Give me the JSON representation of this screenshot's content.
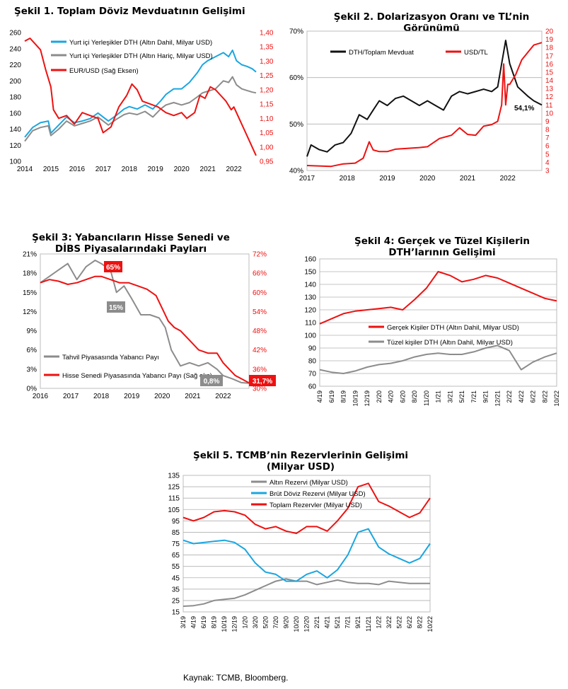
{
  "source_note": "Kaynak: TCMB, Bloomberg.",
  "colors": {
    "red": "#ee1111",
    "blue": "#1aa6e0",
    "gray": "#8c8c8c",
    "black": "#111111"
  },
  "chart_data": [
    {
      "type": "line",
      "title": "Şekil 1. Toplam Döviz Mevduatının Gelişimi",
      "x_ticks": [
        "2014",
        "2015",
        "2016",
        "2017",
        "2018",
        "2019",
        "2020",
        "2021",
        "2022"
      ],
      "x_range": [
        2014,
        2022.85
      ],
      "y_left": {
        "ticks": [
          "100",
          "120",
          "140",
          "160",
          "180",
          "200",
          "220",
          "240",
          "260"
        ],
        "range": [
          100,
          260
        ]
      },
      "y_right": {
        "ticks": [
          "0,95",
          "1,00",
          "1,05",
          "1,10",
          "1,15",
          "1,20",
          "1,25",
          "1,30",
          "1,35",
          "1,40"
        ],
        "range": [
          0.95,
          1.4
        ],
        "color": "#ee1111"
      },
      "legend_position": "top-right",
      "series": [
        {
          "name": "Yurt içi Yerleşikler DTH (Altın Dahil, Milyar USD)",
          "axis": "left",
          "color": "#1aa6e0",
          "x": [
            2014,
            2014.3,
            2014.6,
            2014.9,
            2015.0,
            2015.3,
            2015.6,
            2015.9,
            2016.2,
            2016.5,
            2016.8,
            2017.0,
            2017.2,
            2017.5,
            2017.8,
            2018.0,
            2018.3,
            2018.6,
            2018.9,
            2019.2,
            2019.4,
            2019.7,
            2020.0,
            2020.3,
            2020.6,
            2020.8,
            2021.0,
            2021.3,
            2021.6,
            2021.8,
            2021.95,
            2022.1,
            2022.3,
            2022.5,
            2022.7,
            2022.85
          ],
          "y": [
            130,
            142,
            148,
            150,
            135,
            145,
            155,
            148,
            150,
            153,
            160,
            155,
            150,
            157,
            165,
            168,
            165,
            170,
            165,
            175,
            183,
            190,
            190,
            198,
            210,
            220,
            225,
            230,
            235,
            230,
            238,
            225,
            220,
            218,
            215,
            211
          ]
        },
        {
          "name": "Yurt içi Yerleşikler DTH (Altın Hariç, Milyar USD)",
          "axis": "left",
          "color": "#8c8c8c",
          "x": [
            2014,
            2014.3,
            2014.6,
            2014.9,
            2015.0,
            2015.3,
            2015.6,
            2015.9,
            2016.2,
            2016.5,
            2016.8,
            2017.0,
            2017.2,
            2017.5,
            2017.8,
            2018.0,
            2018.3,
            2018.6,
            2018.9,
            2019.2,
            2019.4,
            2019.7,
            2020.0,
            2020.3,
            2020.6,
            2020.8,
            2021.0,
            2021.3,
            2021.6,
            2021.8,
            2021.95,
            2022.1,
            2022.3,
            2022.5,
            2022.7,
            2022.85
          ],
          "y": [
            125,
            138,
            142,
            144,
            132,
            140,
            150,
            144,
            147,
            150,
            155,
            150,
            145,
            152,
            158,
            160,
            158,
            162,
            155,
            165,
            170,
            173,
            170,
            173,
            180,
            185,
            187,
            190,
            200,
            198,
            205,
            195,
            190,
            188,
            186,
            185
          ]
        },
        {
          "name": "EUR/USD (Sağ Eksen)",
          "axis": "right",
          "color": "#ee1111",
          "x": [
            2014,
            2014.2,
            2014.4,
            2014.6,
            2014.8,
            2015.0,
            2015.1,
            2015.3,
            2015.6,
            2015.9,
            2016.2,
            2016.5,
            2016.8,
            2017.0,
            2017.3,
            2017.6,
            2017.9,
            2018.1,
            2018.3,
            2018.5,
            2018.8,
            2019.1,
            2019.4,
            2019.7,
            2020.0,
            2020.2,
            2020.5,
            2020.7,
            2020.9,
            2021.1,
            2021.3,
            2021.5,
            2021.7,
            2021.9,
            2022.0,
            2022.2,
            2022.4,
            2022.6,
            2022.75,
            2022.85
          ],
          "y": [
            1.37,
            1.38,
            1.36,
            1.34,
            1.27,
            1.21,
            1.13,
            1.1,
            1.11,
            1.08,
            1.12,
            1.11,
            1.1,
            1.05,
            1.07,
            1.14,
            1.18,
            1.22,
            1.2,
            1.16,
            1.15,
            1.14,
            1.12,
            1.11,
            1.12,
            1.1,
            1.12,
            1.18,
            1.17,
            1.21,
            1.2,
            1.18,
            1.16,
            1.13,
            1.14,
            1.1,
            1.06,
            1.02,
            0.99,
            0.97
          ]
        }
      ]
    },
    {
      "type": "line",
      "title": "Şekil 2. Dolarizasyon Oranı ve TL’nin Görünümü",
      "x_ticks": [
        "2017",
        "2018",
        "2019",
        "2020",
        "2021",
        "2022"
      ],
      "x_range": [
        2017,
        2022.85
      ],
      "y_left": {
        "ticks": [
          "40%",
          "50%",
          "60%",
          "70%"
        ],
        "range": [
          40,
          70
        ]
      },
      "y_right": {
        "ticks": [
          "3",
          "4",
          "5",
          "6",
          "7",
          "8",
          "9",
          "10",
          "11",
          "12",
          "13",
          "14",
          "15",
          "16",
          "17",
          "18",
          "19",
          "20"
        ],
        "range": [
          3,
          20
        ],
        "color": "#ee1111"
      },
      "annotations": [
        "54,1%"
      ],
      "series": [
        {
          "name": "DTH/Toplam Mevduat",
          "axis": "left",
          "color": "#111111",
          "x": [
            2017,
            2017.1,
            2017.3,
            2017.5,
            2017.7,
            2017.9,
            2018.1,
            2018.3,
            2018.5,
            2018.65,
            2018.8,
            2019.0,
            2019.2,
            2019.4,
            2019.6,
            2019.8,
            2020.0,
            2020.2,
            2020.4,
            2020.6,
            2020.8,
            2021.0,
            2021.2,
            2021.4,
            2021.6,
            2021.75,
            2021.85,
            2021.95,
            2022.05,
            2022.25,
            2022.5,
            2022.65,
            2022.85
          ],
          "y": [
            43,
            45.5,
            44.5,
            44,
            45.5,
            46,
            48,
            52,
            51,
            53,
            55,
            54,
            55.5,
            56,
            55,
            54,
            55,
            54,
            53,
            56,
            57,
            56.5,
            57,
            57.5,
            57,
            58,
            63,
            68,
            63,
            58,
            56,
            55,
            54.1
          ]
        },
        {
          "name": "USD/TL",
          "axis": "right",
          "color": "#ee1111",
          "x": [
            2017,
            2017.3,
            2017.6,
            2017.9,
            2018.2,
            2018.4,
            2018.55,
            2018.65,
            2018.8,
            2019.0,
            2019.2,
            2019.5,
            2019.8,
            2020.0,
            2020.3,
            2020.6,
            2020.8,
            2021.0,
            2021.2,
            2021.4,
            2021.6,
            2021.75,
            2021.85,
            2021.9,
            2021.95,
            2022.0,
            2022.05,
            2022.2,
            2022.35,
            2022.5,
            2022.65,
            2022.85
          ],
          "y": [
            3.6,
            3.55,
            3.5,
            3.8,
            3.9,
            4.5,
            6.5,
            5.5,
            5.3,
            5.3,
            5.6,
            5.7,
            5.8,
            5.9,
            6.9,
            7.3,
            8.2,
            7.4,
            7.3,
            8.4,
            8.6,
            9,
            11,
            16,
            11,
            13.5,
            13.5,
            14.7,
            16.5,
            17.4,
            18.3,
            18.6
          ]
        }
      ]
    },
    {
      "type": "line",
      "title": "Şekil 3: Yabancıların Hisse Senedi ve DİBS Piyasalarındaki Payları",
      "x_ticks": [
        "2016",
        "2017",
        "2018",
        "2019",
        "2020",
        "2021",
        "2022"
      ],
      "x_range": [
        2016,
        2022.85
      ],
      "y_left": {
        "ticks": [
          "0%",
          "3%",
          "6%",
          "9%",
          "12%",
          "15%",
          "18%",
          "21%"
        ],
        "range": [
          0,
          21
        ]
      },
      "y_right": {
        "ticks": [
          "30%",
          "36%",
          "42%",
          "48%",
          "54%",
          "60%",
          "66%",
          "72%"
        ],
        "range": [
          30,
          72
        ],
        "color": "#ee1111"
      },
      "annotations": [
        "65%",
        "15%",
        "0,8%",
        "31,7%"
      ],
      "series": [
        {
          "name": "Tahvil Piyasasında Yabancı Payı",
          "axis": "left",
          "color": "#8c8c8c",
          "x": [
            2016,
            2016.3,
            2016.6,
            2016.9,
            2017.2,
            2017.5,
            2017.8,
            2018.0,
            2018.3,
            2018.5,
            2018.75,
            2019.0,
            2019.3,
            2019.6,
            2019.9,
            2020.1,
            2020.3,
            2020.6,
            2020.9,
            2021.2,
            2021.5,
            2021.8,
            2022.0,
            2022.3,
            2022.6,
            2022.85
          ],
          "y": [
            16.5,
            17.5,
            18.5,
            19.5,
            17,
            19,
            20,
            19.5,
            18.5,
            15,
            16,
            14,
            11.5,
            11.5,
            11,
            9.5,
            6,
            3.5,
            4,
            3.5,
            4,
            3,
            2,
            1.5,
            0.9,
            0.8
          ]
        },
        {
          "name": "Hisse Senedi Piyasasında Yabancı Payı (Sağ eks)",
          "axis": "right",
          "color": "#ee1111",
          "x": [
            2016,
            2016.3,
            2016.6,
            2016.9,
            2017.2,
            2017.5,
            2017.8,
            2018.0,
            2018.3,
            2018.6,
            2018.9,
            2019.2,
            2019.5,
            2019.8,
            2020.0,
            2020.2,
            2020.4,
            2020.6,
            2020.9,
            2021.2,
            2021.5,
            2021.8,
            2022.0,
            2022.2,
            2022.4,
            2022.6,
            2022.85
          ],
          "y": [
            63,
            64,
            63.5,
            62.5,
            63,
            64,
            65,
            65,
            64,
            63,
            63,
            62,
            61,
            59,
            55,
            51,
            49,
            48,
            45,
            42,
            41,
            41,
            38,
            36,
            34,
            33,
            31.7
          ]
        }
      ]
    },
    {
      "type": "line",
      "title": "Şekil 4: Gerçek ve Tüzel Kişilerin DTH’larının Gelişimi",
      "x_ticks": [
        "4/19",
        "6/19",
        "8/19",
        "10/19",
        "12/19",
        "2/20",
        "4/20",
        "6/20",
        "8/20",
        "11/20",
        "1/21",
        "3/21",
        "5/21",
        "7/21",
        "9/21",
        "12/21",
        "2/22",
        "4/22",
        "6/22",
        "8/22",
        "10/22"
      ],
      "y": {
        "ticks": [
          "60",
          "70",
          "80",
          "90",
          "100",
          "110",
          "120",
          "130",
          "140",
          "150",
          "160"
        ],
        "range": [
          60,
          160
        ]
      },
      "legend_position": "center-right",
      "series": [
        {
          "name": "Gerçek Kişiler DTH (Altın Dahil, Milyar USD)",
          "color": "#ee1111",
          "x": [
            0,
            1,
            2,
            3,
            4,
            5,
            6,
            7,
            8,
            9,
            10,
            11,
            12,
            13,
            14,
            15,
            16,
            17,
            18,
            19,
            20
          ],
          "y": [
            109,
            113,
            117,
            119,
            120,
            121,
            122,
            120,
            128,
            137,
            150,
            147,
            142,
            144,
            147,
            145,
            141,
            137,
            133,
            129,
            127
          ]
        },
        {
          "name": "Tüzel kişiler DTH (Altın Dahil, Milyar USD)",
          "color": "#8c8c8c",
          "x": [
            0,
            1,
            2,
            3,
            4,
            5,
            6,
            7,
            8,
            9,
            10,
            11,
            12,
            13,
            14,
            15,
            16,
            17,
            18,
            19,
            20
          ],
          "y": [
            73,
            71,
            70,
            72,
            75,
            77,
            78,
            80,
            83,
            85,
            86,
            85,
            85,
            87,
            90,
            92,
            88,
            73,
            79,
            83,
            86
          ]
        }
      ]
    },
    {
      "type": "line",
      "title": "Şekil 5. TCMB’nin Rezervlerinin Gelişimi (Milyar USD)",
      "x_ticks": [
        "3/19",
        "4/19",
        "6/19",
        "8/19",
        "10/19",
        "12/19",
        "1/20",
        "3/20",
        "5/20",
        "7/20",
        "9/20",
        "10/20",
        "12/20",
        "2/21",
        "4/21",
        "5/21",
        "7/21",
        "9/21",
        "11/21",
        "1/22",
        "3/22",
        "5/22",
        "6/22",
        "8/22",
        "10/22"
      ],
      "y": {
        "ticks": [
          "15",
          "25",
          "35",
          "45",
          "55",
          "65",
          "75",
          "85",
          "95",
          "105",
          "115",
          "125",
          "135"
        ],
        "range": [
          15,
          135
        ]
      },
      "legend_position": "top-center",
      "series": [
        {
          "name": "Altın Rezervi (Milyar USD)",
          "color": "#8c8c8c",
          "x": [
            0,
            1,
            2,
            3,
            4,
            5,
            6,
            7,
            8,
            9,
            10,
            11,
            12,
            13,
            14,
            15,
            16,
            17,
            18,
            19,
            20,
            21,
            22,
            23,
            24
          ],
          "y": [
            20,
            20.5,
            22,
            25,
            26,
            27,
            30,
            34,
            38,
            42,
            44,
            42,
            42,
            39,
            41,
            43,
            41,
            40,
            40,
            39,
            42,
            41,
            40,
            40,
            40
          ]
        },
        {
          "name": "Brüt Döviz Rezervi (Milyar USD)",
          "color": "#1aa6e0",
          "x": [
            0,
            1,
            2,
            3,
            4,
            5,
            6,
            7,
            8,
            9,
            10,
            11,
            12,
            13,
            14,
            15,
            16,
            17,
            18,
            19,
            20,
            21,
            22,
            23,
            24
          ],
          "y": [
            78,
            75,
            76,
            77,
            78,
            76,
            70,
            58,
            50,
            48,
            42,
            42,
            48,
            51,
            45,
            52,
            65,
            85,
            88,
            72,
            66,
            62,
            58,
            62,
            75
          ]
        },
        {
          "name": "Toplam Rezervler (Milyar USD)",
          "color": "#ee1111",
          "x": [
            0,
            1,
            2,
            3,
            4,
            5,
            6,
            7,
            8,
            9,
            10,
            11,
            12,
            13,
            14,
            15,
            16,
            17,
            18,
            19,
            20,
            21,
            22,
            23,
            24
          ],
          "y": [
            98,
            95,
            98,
            103,
            104,
            103,
            100,
            92,
            88,
            90,
            86,
            84,
            90,
            90,
            86,
            95,
            106,
            125,
            128,
            112,
            108,
            103,
            98,
            102,
            115
          ]
        }
      ]
    }
  ]
}
